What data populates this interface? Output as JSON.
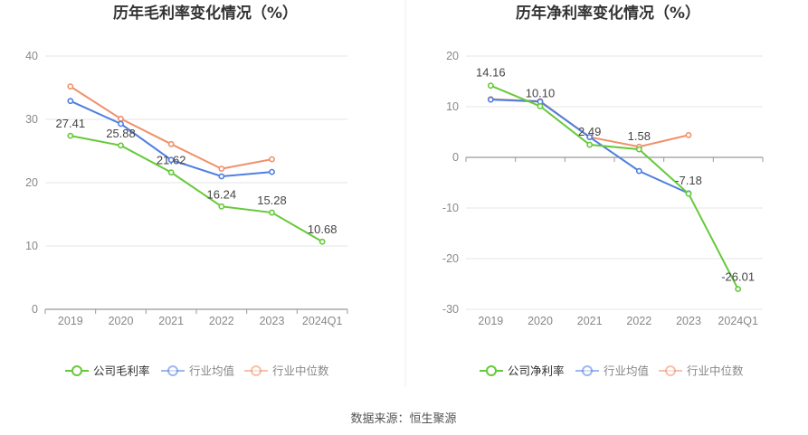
{
  "source": "数据来源：恒生聚源",
  "chart_data": [
    {
      "type": "line",
      "title": "历年毛利率变化情况（%）",
      "categories": [
        "2019",
        "2020",
        "2021",
        "2022",
        "2023",
        "2024Q1"
      ],
      "ylim": [
        0,
        40
      ],
      "yticks": [
        0,
        10,
        20,
        30,
        40
      ],
      "grid": true,
      "legend_position": "bottom",
      "series": [
        {
          "name": "公司毛利率",
          "color": "#66c93a",
          "values": [
            27.41,
            25.88,
            21.62,
            16.24,
            15.28,
            10.68
          ],
          "labels": [
            "27.41",
            "25.88",
            "21.62",
            "16.24",
            "15.28",
            "10.68"
          ]
        },
        {
          "name": "行业均值",
          "color": "#4f7fe0",
          "values": [
            32.9,
            29.3,
            23.6,
            21.0,
            21.7,
            null
          ],
          "labels": []
        },
        {
          "name": "行业中位数",
          "color": "#f0906a",
          "values": [
            35.2,
            30.1,
            26.1,
            22.2,
            23.7,
            null
          ],
          "labels": []
        }
      ]
    },
    {
      "type": "line",
      "title": "历年净利率变化情况（%）",
      "categories": [
        "2019",
        "2020",
        "2021",
        "2022",
        "2023",
        "2024Q1"
      ],
      "ylim": [
        -30,
        20
      ],
      "yticks": [
        -30,
        -20,
        -10,
        0,
        10,
        20
      ],
      "grid": true,
      "legend_position": "bottom",
      "series": [
        {
          "name": "公司净利率",
          "color": "#66c93a",
          "values": [
            14.16,
            10.1,
            2.49,
            1.58,
            -7.18,
            -26.01
          ],
          "labels": [
            "14.16",
            "10.10",
            "2.49",
            "1.58",
            "-7.18",
            "-26.01"
          ]
        },
        {
          "name": "行业均值",
          "color": "#4f7fe0",
          "values": [
            11.4,
            11.0,
            4.0,
            -2.7,
            -7.1,
            null
          ],
          "labels": []
        },
        {
          "name": "行业中位数",
          "color": "#f0906a",
          "values": [
            11.5,
            11.1,
            4.0,
            2.1,
            4.4,
            null
          ],
          "labels": []
        }
      ]
    }
  ]
}
